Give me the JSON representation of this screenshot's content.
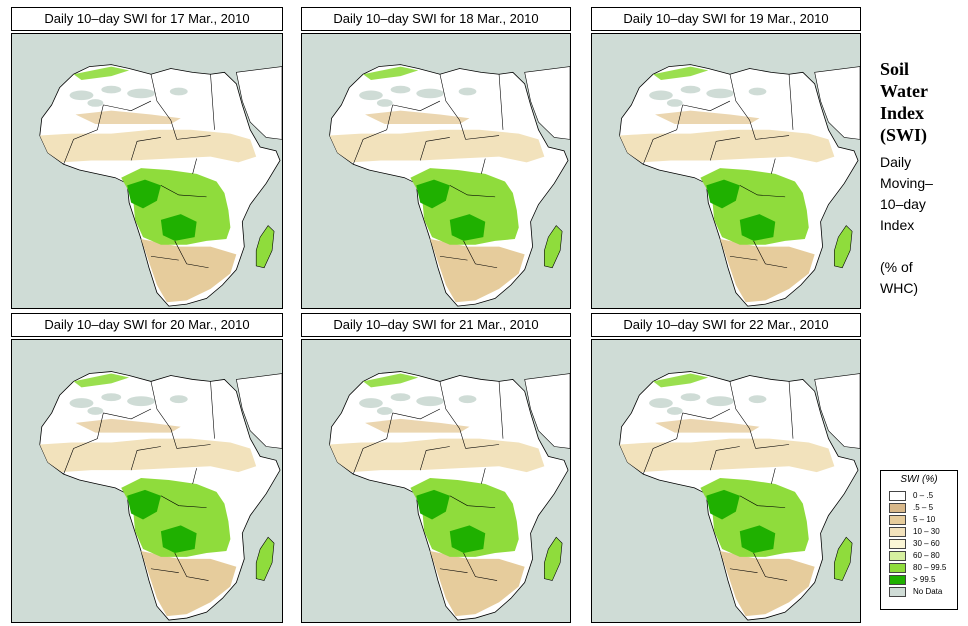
{
  "panels": [
    {
      "title": "Daily 10–day SWI for  17 Mar., 2010"
    },
    {
      "title": "Daily 10–day SWI for  18 Mar., 2010"
    },
    {
      "title": "Daily 10–day SWI for  19 Mar., 2010"
    },
    {
      "title": "Daily 10–day SWI for  20 Mar., 2010"
    },
    {
      "title": "Daily 10–day SWI for  21 Mar., 2010"
    },
    {
      "title": "Daily 10–day SWI for  22 Mar., 2010"
    }
  ],
  "side": {
    "title_lines": [
      "Soil",
      "Water",
      "Index",
      "(SWI)"
    ],
    "subtitle_lines": [
      "Daily",
      "Moving–",
      "10–day",
      "Index",
      "",
      "(% of",
      " WHC)"
    ]
  },
  "legend": {
    "title": "SWI (%)",
    "items": [
      {
        "label": "0 – .5",
        "color": "#ffffff"
      },
      {
        "label": ".5 – 5",
        "color": "#d8b88a"
      },
      {
        "label": "5 – 10",
        "color": "#e6cc9c"
      },
      {
        "label": "10 – 30",
        "color": "#f2e2bc"
      },
      {
        "label": "30 – 60",
        "color": "#fbf6d6"
      },
      {
        "label": "60 – 80",
        "color": "#d6f0a0"
      },
      {
        "label": "80 – 99.5",
        "color": "#8fdc3c"
      },
      {
        "label": "> 99.5",
        "color": "#1fb000"
      },
      {
        "label": "No Data",
        "color": "#cfdcd6"
      }
    ]
  },
  "colors": {
    "ocean": "#cfdcd6",
    "land_dry": "#ffffff",
    "sahel": "#f2e2bc",
    "arid_tan": "#e6cc9c",
    "green_mid": "#8fdc3c",
    "green_dark": "#1fb000",
    "no_data": "#cfdcd6"
  }
}
